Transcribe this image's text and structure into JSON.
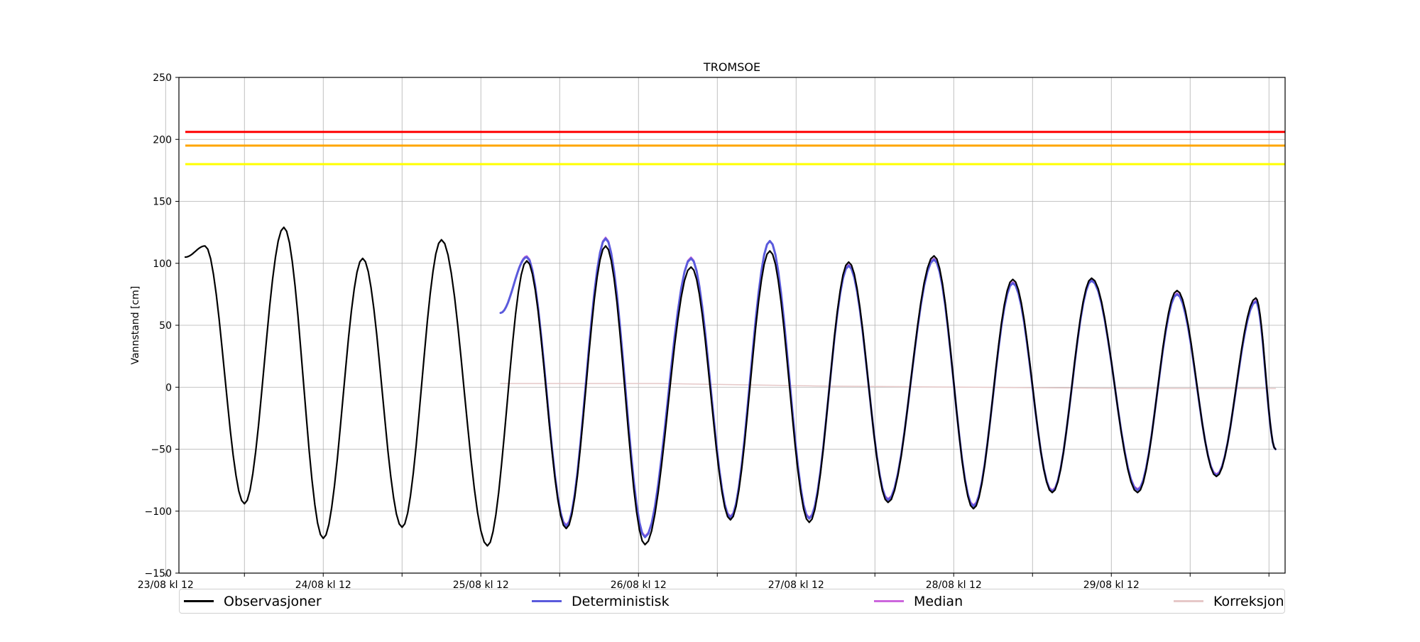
{
  "chart_data": {
    "type": "line",
    "title": "TROMSOE",
    "xlabel": "",
    "ylabel": "Vannstand [cm]",
    "ylim": [
      -150,
      250
    ],
    "yticks": [
      -150,
      -100,
      -50,
      0,
      50,
      100,
      150,
      200,
      250
    ],
    "x_unit": "date",
    "xlim": [
      "2024-08-23T12:00",
      "2024-08-30T10:00"
    ],
    "xtick_labels": [
      "23/08 kl 12",
      "24/08 kl 12",
      "25/08 kl 12",
      "26/08 kl 12",
      "27/08 kl 12",
      "28/08 kl 12",
      "29/08 kl 12"
    ],
    "grid": true,
    "legend_position": "bottom",
    "thresholds": [
      {
        "value": 206,
        "color": "#ff0000"
      },
      {
        "value": 195,
        "color": "#ffa500"
      },
      {
        "value": 180,
        "color": "#ffff00"
      }
    ],
    "series": [
      {
        "name": "Observasjoner",
        "color": "#000000",
        "x": [
          "2024-08-23T12:00",
          "2024-08-23T15:00",
          "2024-08-23T21:00",
          "2024-08-24T03:00",
          "2024-08-24T09:00",
          "2024-08-24T15:00",
          "2024-08-24T21:00",
          "2024-08-25T03:00",
          "2024-08-25T10:00",
          "2024-08-25T16:00",
          "2024-08-25T22:00",
          "2024-08-26T04:00",
          "2024-08-26T10:00",
          "2024-08-26T17:00",
          "2024-08-26T23:00",
          "2024-08-27T05:00",
          "2024-08-27T11:00",
          "2024-08-27T17:00",
          "2024-08-27T23:00",
          "2024-08-28T06:00",
          "2024-08-28T12:00",
          "2024-08-28T18:00",
          "2024-08-29T00:00",
          "2024-08-29T06:00",
          "2024-08-29T13:00",
          "2024-08-29T19:00",
          "2024-08-30T01:00",
          "2024-08-30T07:00",
          "2024-08-30T10:00"
        ],
        "y": [
          105,
          114,
          -94,
          129,
          -122,
          104,
          -113,
          119,
          -128,
          102,
          -114,
          114,
          -127,
          97,
          -107,
          110,
          -109,
          101,
          -93,
          106,
          -98,
          87,
          -85,
          88,
          -85,
          78,
          -72,
          72,
          -50
        ]
      },
      {
        "name": "Deterministisk",
        "color": "#5a5adc",
        "x": [
          "2024-08-25T12:00",
          "2024-08-25T16:00",
          "2024-08-25T22:00",
          "2024-08-26T04:00",
          "2024-08-26T10:00",
          "2024-08-26T17:00",
          "2024-08-26T23:00",
          "2024-08-27T05:00",
          "2024-08-27T11:00",
          "2024-08-27T17:00",
          "2024-08-27T23:00",
          "2024-08-28T06:00",
          "2024-08-28T12:00",
          "2024-08-28T18:00",
          "2024-08-29T00:00",
          "2024-08-29T06:00",
          "2024-08-29T13:00",
          "2024-08-29T19:00",
          "2024-08-30T01:00",
          "2024-08-30T07:00",
          "2024-08-30T10:00"
        ],
        "y": [
          60,
          105,
          -112,
          120,
          -121,
          104,
          -105,
          118,
          -106,
          98,
          -91,
          103,
          -96,
          84,
          -84,
          86,
          -83,
          75,
          -71,
          69,
          -50
        ]
      },
      {
        "name": "Median",
        "color": "#cc66dd",
        "x": [
          "2024-08-25T12:00",
          "2024-08-25T16:00",
          "2024-08-25T22:00",
          "2024-08-26T04:00",
          "2024-08-26T10:00",
          "2024-08-26T17:00",
          "2024-08-26T23:00",
          "2024-08-27T05:00",
          "2024-08-27T11:00",
          "2024-08-27T17:00",
          "2024-08-27T23:00",
          "2024-08-28T06:00",
          "2024-08-28T12:00",
          "2024-08-28T18:00",
          "2024-08-29T00:00",
          "2024-08-29T06:00",
          "2024-08-29T13:00",
          "2024-08-29T19:00",
          "2024-08-30T01:00",
          "2024-08-30T07:00",
          "2024-08-30T10:00"
        ],
        "y": [
          60,
          106,
          -111,
          121,
          -120,
          105,
          -104,
          118,
          -105,
          99,
          -90,
          104,
          -95,
          85,
          -83,
          87,
          -82,
          76,
          -70,
          70,
          -50
        ]
      },
      {
        "name": "Korreksjon",
        "color": "#e6c8c8",
        "x": [
          "2024-08-25T12:00",
          "2024-08-26T12:00",
          "2024-08-27T12:00",
          "2024-08-28T12:00",
          "2024-08-29T12:00",
          "2024-08-30T10:00"
        ],
        "y": [
          3,
          3,
          1,
          0,
          -1,
          -1
        ]
      }
    ]
  }
}
